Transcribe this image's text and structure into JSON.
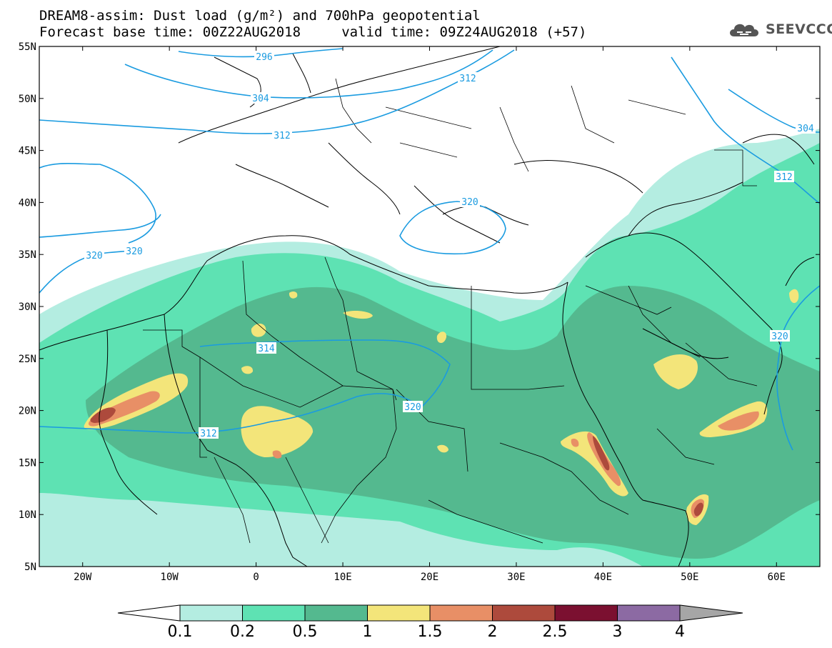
{
  "header": {
    "title_line1": "DREAM8-assim: Dust load (g/m²) and 700hPa geopotential",
    "title_line2": "Forecast base time: 00Z22AUG2018     valid time: 09Z24AUG2018 (+57)"
  },
  "brand": {
    "name": "SEEVCCC",
    "icon": "cloud-logo-icon"
  },
  "map": {
    "lon_range": [
      -25,
      65
    ],
    "lat_range": [
      5,
      55
    ],
    "lat_ticks": [
      "55N",
      "50N",
      "45N",
      "40N",
      "35N",
      "30N",
      "25N",
      "20N",
      "15N",
      "10N",
      "5N"
    ],
    "lon_ticks": [
      "20W",
      "10W",
      "0",
      "10E",
      "20E",
      "30E",
      "40E",
      "50E",
      "60E"
    ],
    "contour_labels": [
      "296",
      "304",
      "312",
      "312",
      "304",
      "312",
      "320",
      "320",
      "314",
      "320",
      "320",
      "312",
      "320"
    ],
    "colors": {
      "c0_1": "#b4ede1",
      "c0_2": "#5ee2b3",
      "c0_5": "#54b98f",
      "c1": "#f3e57a",
      "c1_5": "#e88f66",
      "c2": "#ad4a3c",
      "c2_5": "#7b1030",
      "c3": "#8c6aa3",
      "c4": "#a6a6a6",
      "contour": "#1a9be0"
    }
  },
  "colorbar": {
    "labels": [
      "0.1",
      "0.2",
      "0.5",
      "1",
      "1.5",
      "2",
      "2.5",
      "3",
      "4"
    ]
  }
}
